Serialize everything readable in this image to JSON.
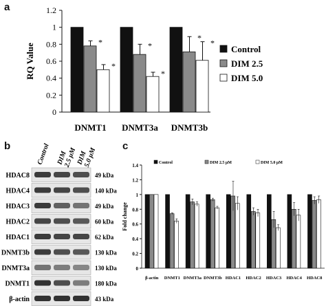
{
  "panels": {
    "a": "a",
    "b": "b",
    "c": "c"
  },
  "colors": {
    "control": "#111111",
    "dim25": "#8a8a8a",
    "dim50": "#ffffff",
    "blot_band": "#3a3a3a"
  },
  "chart_data": [
    {
      "type": "bar",
      "panel": "a",
      "title": "",
      "xlabel": "",
      "ylabel": "RQ Value",
      "ylim": [
        0,
        1.2
      ],
      "yticks": [
        "0",
        "0.2",
        "0.4",
        "0.6",
        "0.8",
        "1",
        "1.2"
      ],
      "categories": [
        "DNMT1",
        "DNMT3a",
        "DNMT3b"
      ],
      "series": [
        {
          "name": "Control",
          "values": [
            1.0,
            1.0,
            1.0
          ],
          "errors": [
            0,
            0,
            0
          ]
        },
        {
          "name": "DIM 2.5",
          "values": [
            0.78,
            0.68,
            0.71
          ],
          "errors": [
            0.06,
            0.12,
            0.18
          ]
        },
        {
          "name": "DIM 5.0",
          "values": [
            0.5,
            0.42,
            0.61
          ],
          "errors": [
            0.06,
            0.05,
            0.22
          ]
        }
      ],
      "significance": [
        [
          "*",
          "*",
          ""
        ],
        [
          "*",
          "*",
          "*"
        ],
        [
          "*",
          "*",
          "*"
        ]
      ],
      "legend_position": "right",
      "grid": false
    },
    {
      "type": "bar",
      "panel": "c",
      "title": "",
      "xlabel": "",
      "ylabel": "Fold change",
      "ylim": [
        0,
        1.4
      ],
      "yticks": [
        "0",
        "0.2",
        "0.4",
        "0.6",
        "0.8",
        "1",
        "1.2",
        "1.4"
      ],
      "categories": [
        "β-actin",
        "DNMT1",
        "DNMT3a",
        "DNMT3b",
        "HDAC1",
        "HDAC2",
        "HDAC3",
        "HDAC4",
        "HDAC8"
      ],
      "series": [
        {
          "name": "Control",
          "values": [
            1,
            1,
            1,
            1,
            1,
            1,
            1,
            1,
            1
          ],
          "errors": [
            0,
            0,
            0,
            0,
            0,
            0,
            0,
            0,
            0
          ]
        },
        {
          "name": "DIM 2.5 μM",
          "values": [
            1.0,
            0.74,
            0.9,
            0.93,
            0.98,
            0.77,
            0.66,
            0.8,
            0.92
          ],
          "errors": [
            0,
            0.01,
            0.04,
            0.02,
            0.2,
            0.05,
            0.11,
            0.09,
            0.05
          ]
        },
        {
          "name": "DIM 5.0 μM",
          "values": [
            1.0,
            0.64,
            0.87,
            0.82,
            0.88,
            0.75,
            0.55,
            0.72,
            0.93
          ],
          "errors": [
            0,
            0.03,
            0.03,
            0.02,
            0.09,
            0.05,
            0.04,
            0.08,
            0.05
          ]
        }
      ],
      "legend_position": "top",
      "grid": false
    }
  ],
  "blot": {
    "columns": [
      "Control",
      "DIM 2.5 μM",
      "DIM 5.0 μM"
    ],
    "rows": [
      {
        "label": "HDAC8",
        "size": "49 kDa",
        "intensity": [
          0.9,
          0.85,
          0.8
        ]
      },
      {
        "label": "HDAC4",
        "size": "140 kDa",
        "intensity": [
          0.9,
          0.85,
          0.8
        ]
      },
      {
        "label": "HDAC3",
        "size": "49 kDa",
        "intensity": [
          0.9,
          0.7,
          0.6
        ]
      },
      {
        "label": "HDAC2",
        "size": "60 kDa",
        "intensity": [
          0.85,
          0.8,
          0.75
        ]
      },
      {
        "label": "HDAC1",
        "size": "62 kDa",
        "intensity": [
          0.9,
          0.85,
          0.85
        ]
      },
      {
        "label": "DNMT3b",
        "size": "130 kDa",
        "intensity": [
          0.9,
          0.8,
          0.75
        ]
      },
      {
        "label": "DNMT3a",
        "size": "130 kDa",
        "intensity": [
          0.6,
          0.55,
          0.5
        ]
      },
      {
        "label": "DNMT1",
        "size": "180 kDa",
        "intensity": [
          0.95,
          0.8,
          0.55
        ]
      },
      {
        "label": "β-actin",
        "size": "43 kDa",
        "intensity": [
          0.95,
          0.95,
          0.95
        ]
      }
    ]
  }
}
